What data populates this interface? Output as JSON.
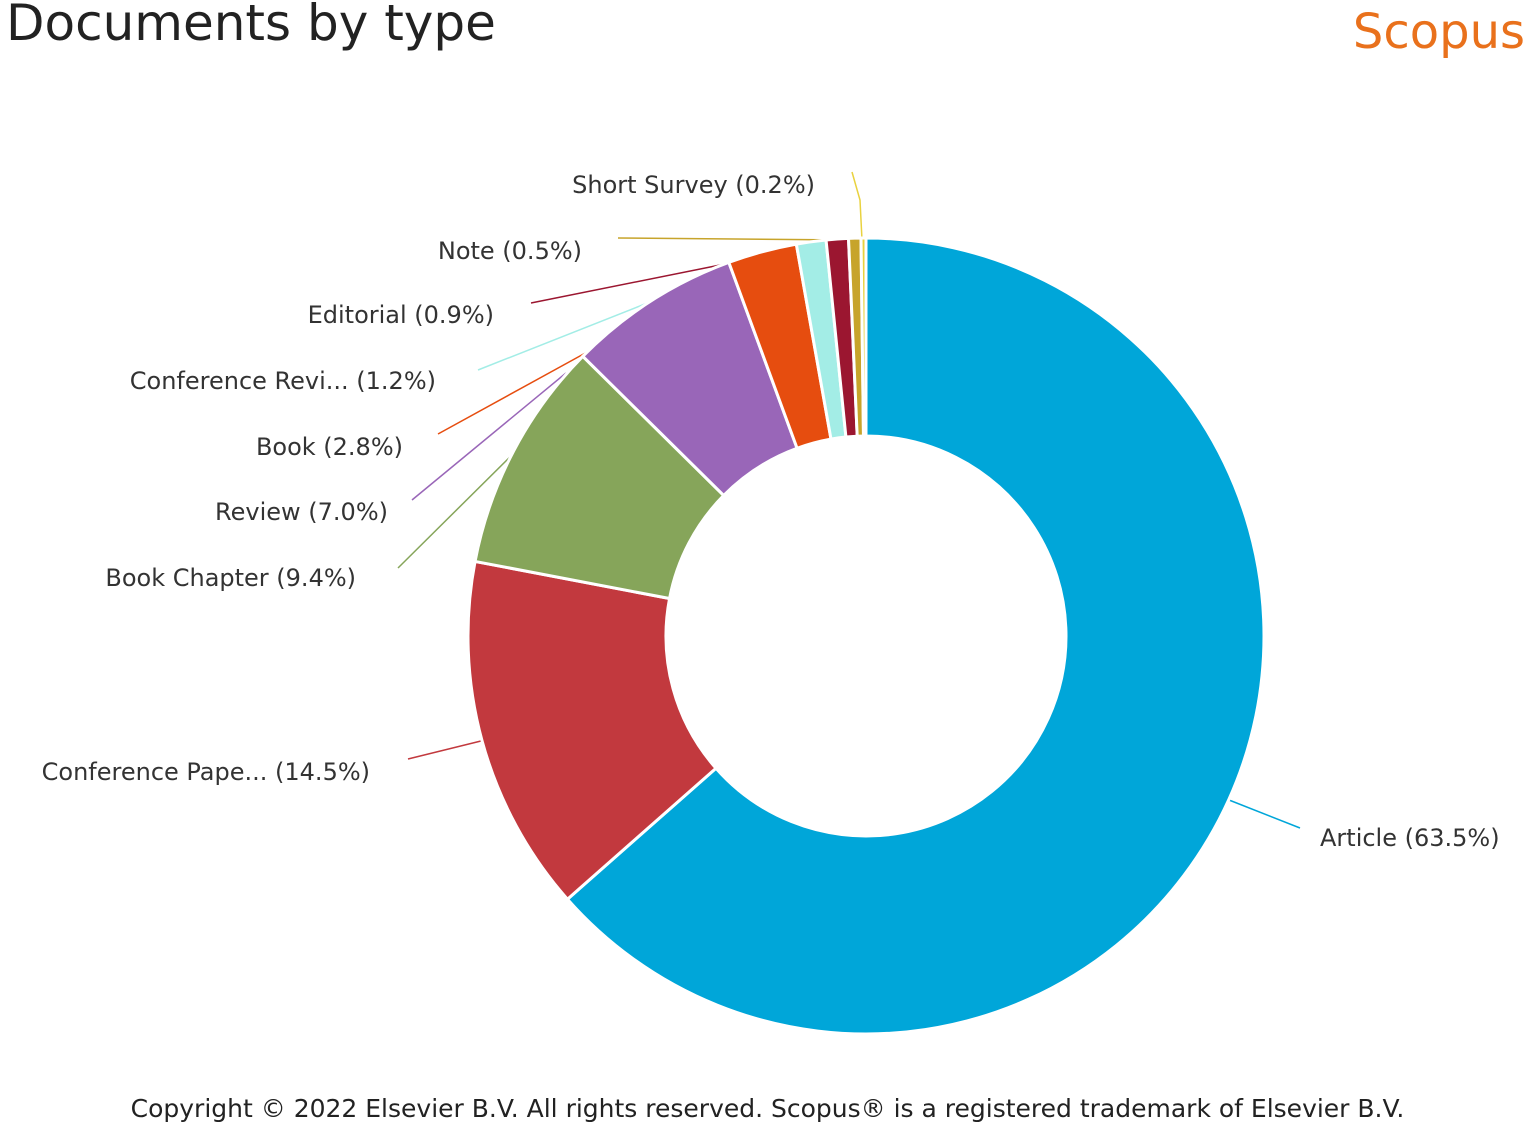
{
  "header": {
    "title": "Documents by type",
    "brand": "Scopus"
  },
  "chart_data": {
    "type": "pie",
    "variant": "donut",
    "title": "Documents by type",
    "slices": [
      {
        "label": "Article (63.5%)",
        "name": "Article",
        "value": 63.5,
        "color": "#00a6d9"
      },
      {
        "label": "Conference Pape... (14.5%)",
        "name": "Conference Pape...",
        "value": 14.5,
        "color": "#c2393e"
      },
      {
        "label": "Book Chapter (9.4%)",
        "name": "Book Chapter",
        "value": 9.4,
        "color": "#86a55a"
      },
      {
        "label": "Review (7.0%)",
        "name": "Review",
        "value": 7.0,
        "color": "#9966b8"
      },
      {
        "label": "Book (2.8%)",
        "name": "Book",
        "value": 2.8,
        "color": "#e64d0f"
      },
      {
        "label": "Conference Revi... (1.2%)",
        "name": "Conference Revi...",
        "value": 1.2,
        "color": "#a3ede6"
      },
      {
        "label": "Editorial (0.9%)",
        "name": "Editorial",
        "value": 0.9,
        "color": "#9b1630"
      },
      {
        "label": "Note (0.5%)",
        "name": "Note",
        "value": 0.5,
        "color": "#c7a42b"
      },
      {
        "label": "Short Survey (0.2%)",
        "name": "Short Survey",
        "value": 0.2,
        "color": "#e9d23f"
      }
    ],
    "start_at": "top",
    "direction": "clockwise",
    "legend": "none"
  },
  "footer": {
    "copyright": "Copyright © 2022 Elsevier B.V. All rights reserved. Scopus® is a registered trademark of Elsevier B.V."
  }
}
